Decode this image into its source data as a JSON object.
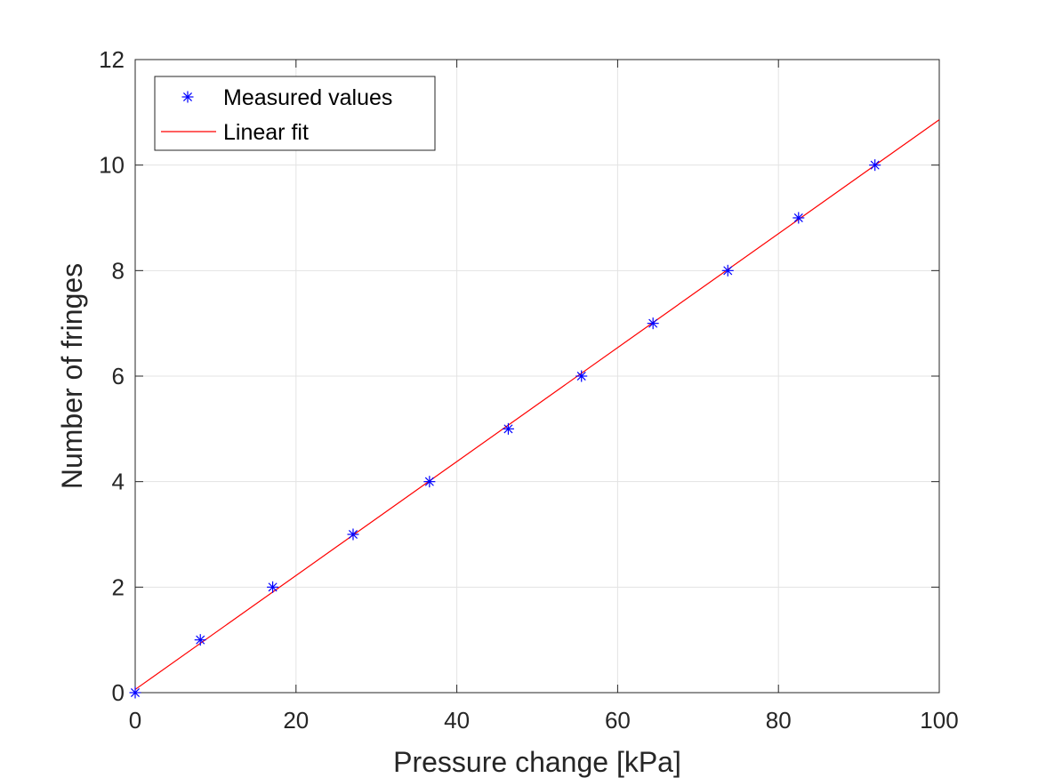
{
  "chart_data": {
    "type": "scatter",
    "title": "",
    "xlabel": "Pressure change [kPa]",
    "ylabel": "Number of fringes",
    "xlim": [
      0,
      100
    ],
    "ylim": [
      0,
      12
    ],
    "xticks": [
      0,
      20,
      40,
      60,
      80,
      100
    ],
    "yticks": [
      0,
      2,
      4,
      6,
      8,
      10,
      12
    ],
    "xtick_labels": [
      "0",
      "20",
      "40",
      "60",
      "80",
      "100"
    ],
    "ytick_labels": [
      "0",
      "2",
      "4",
      "6",
      "8",
      "10",
      "12"
    ],
    "grid": true,
    "legend_position": "top-left",
    "series": [
      {
        "name": "Measured values",
        "kind": "marker",
        "marker": "asterisk",
        "color": "#0000ff",
        "x": [
          0,
          8.1,
          17.1,
          27.1,
          36.6,
          46.4,
          55.5,
          64.4,
          73.7,
          82.5,
          92.0
        ],
        "y": [
          0,
          1,
          2,
          3,
          4,
          5,
          6,
          7,
          8,
          9,
          10
        ]
      },
      {
        "name": "Linear fit",
        "kind": "line",
        "color": "#ff0000",
        "x": [
          0,
          100
        ],
        "y": [
          0.06,
          10.86
        ]
      }
    ]
  }
}
